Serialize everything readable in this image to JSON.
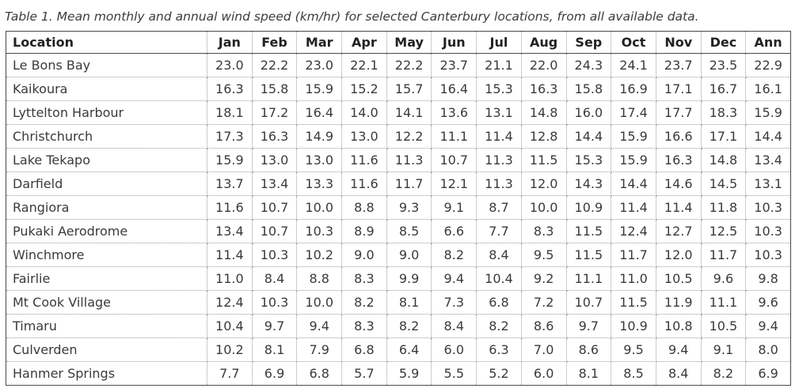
{
  "caption": "Table 1. Mean monthly and annual wind speed (km/hr) for selected Canterbury locations, from all available data.",
  "columns": [
    "Location",
    "Jan",
    "Feb",
    "Mar",
    "Apr",
    "May",
    "Jun",
    "Jul",
    "Aug",
    "Sep",
    "Oct",
    "Nov",
    "Dec",
    "Ann"
  ],
  "rows": [
    {
      "location": "Le Bons Bay",
      "values": [
        "23.0",
        "22.2",
        "23.0",
        "22.1",
        "22.2",
        "23.7",
        "21.1",
        "22.0",
        "24.3",
        "24.1",
        "23.7",
        "23.5",
        "22.9"
      ]
    },
    {
      "location": "Kaikoura",
      "values": [
        "16.3",
        "15.8",
        "15.9",
        "15.2",
        "15.7",
        "16.4",
        "15.3",
        "16.3",
        "15.8",
        "16.9",
        "17.1",
        "16.7",
        "16.1"
      ]
    },
    {
      "location": "Lyttelton Harbour",
      "values": [
        "18.1",
        "17.2",
        "16.4",
        "14.0",
        "14.1",
        "13.6",
        "13.1",
        "14.8",
        "16.0",
        "17.4",
        "17.7",
        "18.3",
        "15.9"
      ]
    },
    {
      "location": "Christchurch",
      "values": [
        "17.3",
        "16.3",
        "14.9",
        "13.0",
        "12.2",
        "11.1",
        "11.4",
        "12.8",
        "14.4",
        "15.9",
        "16.6",
        "17.1",
        "14.4"
      ]
    },
    {
      "location": "Lake Tekapo",
      "values": [
        "15.9",
        "13.0",
        "13.0",
        "11.6",
        "11.3",
        "10.7",
        "11.3",
        "11.5",
        "15.3",
        "15.9",
        "16.3",
        "14.8",
        "13.4"
      ]
    },
    {
      "location": "Darfield",
      "values": [
        "13.7",
        "13.4",
        "13.3",
        "11.6",
        "11.7",
        "12.1",
        "11.3",
        "12.0",
        "14.3",
        "14.4",
        "14.6",
        "14.5",
        "13.1"
      ]
    },
    {
      "location": "Rangiora",
      "values": [
        "11.6",
        "10.7",
        "10.0",
        "8.8",
        "9.3",
        "9.1",
        "8.7",
        "10.0",
        "10.9",
        "11.4",
        "11.4",
        "11.8",
        "10.3"
      ]
    },
    {
      "location": "Pukaki Aerodrome",
      "values": [
        "13.4",
        "10.7",
        "10.3",
        "8.9",
        "8.5",
        "6.6",
        "7.7",
        "8.3",
        "11.5",
        "12.4",
        "12.7",
        "12.5",
        "10.3"
      ]
    },
    {
      "location": "Winchmore",
      "values": [
        "11.4",
        "10.3",
        "10.2",
        "9.0",
        "9.0",
        "8.2",
        "8.4",
        "9.5",
        "11.5",
        "11.7",
        "12.0",
        "11.7",
        "10.3"
      ]
    },
    {
      "location": "Fairlie",
      "values": [
        "11.0",
        "8.4",
        "8.8",
        "8.3",
        "9.9",
        "9.4",
        "10.4",
        "9.2",
        "11.1",
        "11.0",
        "10.5",
        "9.6",
        "9.8"
      ]
    },
    {
      "location": "Mt Cook Village",
      "values": [
        "12.4",
        "10.3",
        "10.0",
        "8.2",
        "8.1",
        "7.3",
        "6.8",
        "7.2",
        "10.7",
        "11.5",
        "11.9",
        "11.1",
        "9.6"
      ]
    },
    {
      "location": "Timaru",
      "values": [
        "10.4",
        "9.7",
        "9.4",
        "8.3",
        "8.2",
        "8.4",
        "8.2",
        "8.6",
        "9.7",
        "10.9",
        "10.8",
        "10.5",
        "9.4"
      ]
    },
    {
      "location": "Culverden",
      "values": [
        "10.2",
        "8.1",
        "7.9",
        "6.8",
        "6.4",
        "6.0",
        "6.3",
        "7.0",
        "8.6",
        "9.5",
        "9.4",
        "9.1",
        "8.0"
      ]
    },
    {
      "location": "Hanmer Springs",
      "values": [
        "7.7",
        "6.9",
        "6.8",
        "5.7",
        "5.9",
        "5.5",
        "5.2",
        "6.0",
        "8.1",
        "8.5",
        "8.4",
        "8.2",
        "6.9"
      ]
    }
  ]
}
